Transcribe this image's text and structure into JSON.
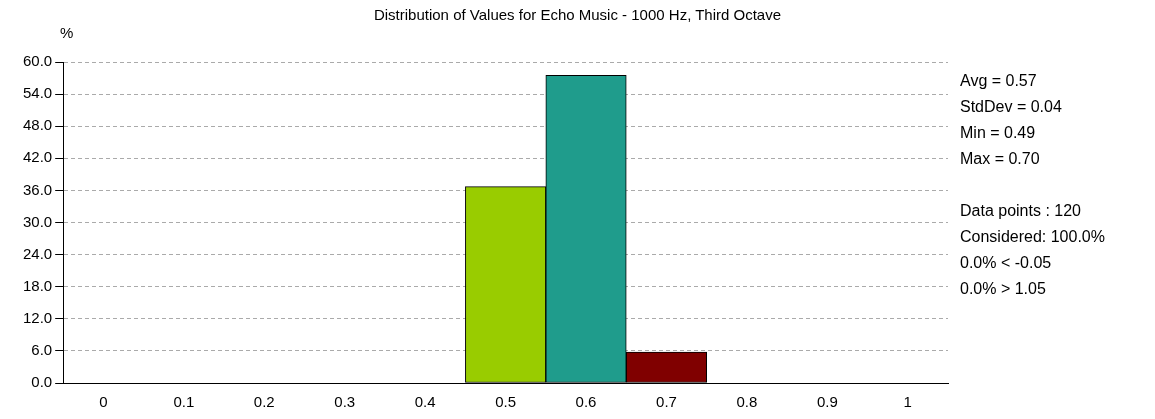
{
  "chart_data": {
    "type": "histogram",
    "title": "Distribution of Values for Echo Music - 1000 Hz, Third Octave",
    "ylabel": "%",
    "bins": [
      0.45,
      0.55,
      0.65,
      0.75
    ],
    "values": [
      36.7,
      57.5,
      5.8
    ],
    "colors": [
      "#99cc00",
      "#1f9c8c",
      "#800000"
    ],
    "xlim": [
      -0.05,
      1.05
    ],
    "xticks": [
      0,
      0.1,
      0.2,
      0.3,
      0.4,
      0.5,
      0.6,
      0.7,
      0.8,
      0.9,
      1
    ],
    "ylim": [
      0,
      60
    ],
    "yticks": [
      {
        "value": 0,
        "label": "0.0"
      },
      {
        "value": 6,
        "label": "6.0"
      },
      {
        "value": 12,
        "label": "12.0"
      },
      {
        "value": 18,
        "label": "18.0"
      },
      {
        "value": 24,
        "label": "24.0"
      },
      {
        "value": 30,
        "label": "30.0"
      },
      {
        "value": 36,
        "label": "36.0"
      },
      {
        "value": 42,
        "label": "42.0"
      },
      {
        "value": 48,
        "label": "48.0"
      },
      {
        "value": 54,
        "label": "54.0"
      },
      {
        "value": 60,
        "label": "60.0"
      }
    ],
    "grid": "y",
    "legend": false,
    "annotations": [
      "Avg = 0.57",
      "StdDev = 0.04",
      "Min = 0.49",
      "Max = 0.70",
      "Data points : 120",
      "Considered: 100.0%",
      "0.0% < -0.05",
      "0.0% > 1.05"
    ]
  }
}
